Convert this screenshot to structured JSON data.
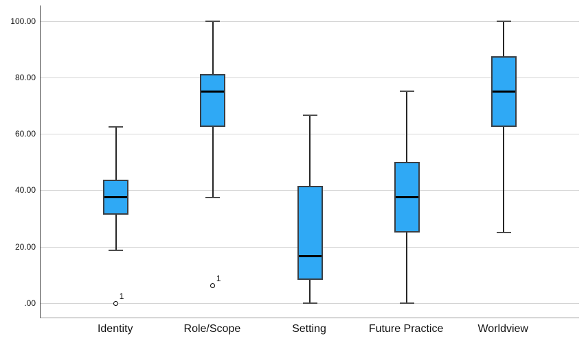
{
  "chart_data": {
    "type": "boxplot",
    "title": "",
    "xlabel": "",
    "ylabel": "",
    "grid": true,
    "legend": "none",
    "categories": [
      "Identity",
      "Role/Scope",
      "Setting",
      "Future Practice",
      "Worldview"
    ],
    "series": [
      {
        "category": "Identity",
        "whisker_low": 18.75,
        "q1": 31.25,
        "median": 37.5,
        "q3": 43.75,
        "whisker_high": 62.5,
        "outliers": [
          {
            "value": 0,
            "label": "1"
          }
        ]
      },
      {
        "category": "Role/Scope",
        "whisker_low": 37.5,
        "q1": 62.5,
        "median": 75,
        "q3": 81.25,
        "whisker_high": 100,
        "outliers": [
          {
            "value": 6.25,
            "label": "1"
          }
        ]
      },
      {
        "category": "Setting",
        "whisker_low": 0,
        "q1": 8.33,
        "median": 16.67,
        "q3": 41.67,
        "whisker_high": 66.67,
        "outliers": []
      },
      {
        "category": "Future Practice",
        "whisker_low": 0,
        "q1": 25,
        "median": 37.5,
        "q3": 50,
        "whisker_high": 75,
        "outliers": []
      },
      {
        "category": "Worldview",
        "whisker_low": 25,
        "q1": 62.5,
        "median": 75,
        "q3": 87.5,
        "whisker_high": 100,
        "outliers": []
      }
    ],
    "y_axis": {
      "min": 0,
      "max": 100,
      "ticks": [
        {
          "value": 0,
          "label": ".00"
        },
        {
          "value": 20,
          "label": "20.00"
        },
        {
          "value": 40,
          "label": "40.00"
        },
        {
          "value": 60,
          "label": "60.00"
        },
        {
          "value": 80,
          "label": "80.00"
        },
        {
          "value": 100,
          "label": "100.00"
        }
      ]
    },
    "colors": {
      "box_fill": "#2FA9F5",
      "box_border": "#3A3E43",
      "median_line": "#000000",
      "whisker": "#262626",
      "whisker_cap": "#4D4D4D",
      "gridline": "#D4D4D4",
      "y_axis_line": "#404040",
      "x_axis_line": "#999999",
      "outlier_stroke": "#000000",
      "label_text": "#111111",
      "background": "#FFFFFF"
    }
  }
}
